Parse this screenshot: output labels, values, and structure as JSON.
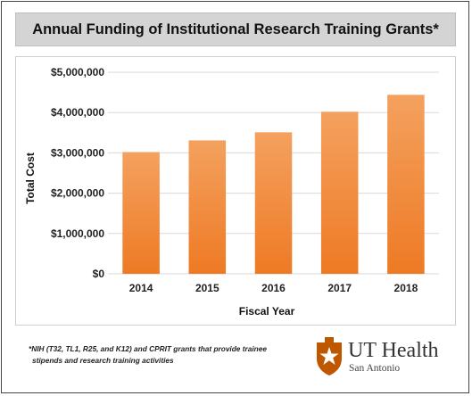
{
  "chart_data": {
    "type": "bar",
    "title": "Annual Funding of Institutional Research Training Grants*",
    "xlabel": "Fiscal Year",
    "ylabel": "Total Cost",
    "categories": [
      "2014",
      "2015",
      "2016",
      "2017",
      "2018"
    ],
    "values": [
      3020000,
      3310000,
      3510000,
      4020000,
      4440000
    ],
    "ylim": [
      0,
      5000000
    ],
    "yticks": [
      0,
      1000000,
      2000000,
      3000000,
      4000000,
      5000000
    ],
    "ytick_labels": [
      "$0",
      "$1,000,000",
      "$2,000,000",
      "$3,000,000",
      "$4,000,000",
      "$5,000,000"
    ],
    "grid": true,
    "legend": "none",
    "bar_color_top": "#f4a15f",
    "bar_color_bottom": "#ee7a24"
  },
  "footnote": {
    "line1": "*NIH (T32, TL1, R25, and K12) and CPRIT grants that provide trainee",
    "line2": "stipends and research training activities"
  },
  "logo": {
    "name": "UT Health",
    "subtitle": "San Antonio",
    "icon": "texas-star-seal-icon",
    "color": "#bf5700"
  }
}
